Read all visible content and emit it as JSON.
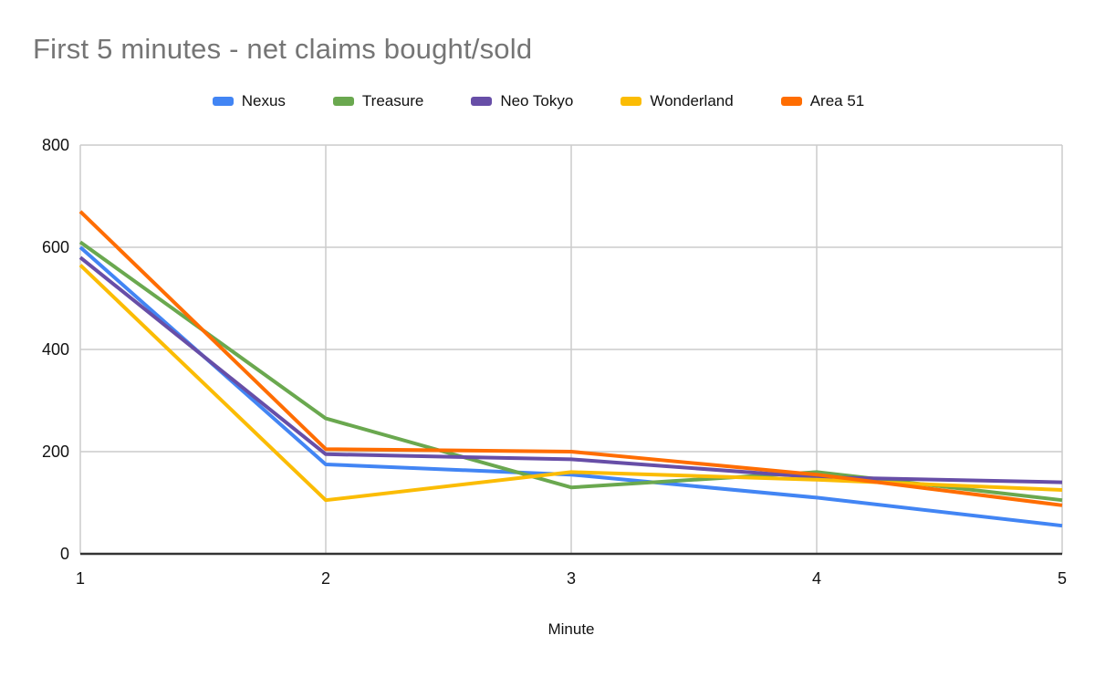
{
  "chart_data": {
    "type": "line",
    "title": "First 5 minutes - net claims bought/sold",
    "xlabel": "Minute",
    "ylabel": "",
    "x": [
      1,
      2,
      3,
      4,
      5
    ],
    "x_ticks": [
      1,
      2,
      3,
      4,
      5
    ],
    "y_ticks": [
      0,
      200,
      400,
      600,
      800
    ],
    "xlim": [
      1,
      5
    ],
    "ylim": [
      0,
      800
    ],
    "grid": true,
    "legend_position": "top",
    "series": [
      {
        "name": "Nexus",
        "color": "#4285F4",
        "values": [
          600,
          175,
          155,
          110,
          55
        ]
      },
      {
        "name": "Treasure",
        "color": "#6AA84F",
        "values": [
          610,
          265,
          130,
          160,
          105
        ]
      },
      {
        "name": "Neo Tokyo",
        "color": "#674EA7",
        "values": [
          580,
          195,
          185,
          150,
          140
        ]
      },
      {
        "name": "Wonderland",
        "color": "#FBBC04",
        "values": [
          565,
          105,
          160,
          145,
          125
        ]
      },
      {
        "name": "Area 51",
        "color": "#FF6D01",
        "values": [
          670,
          205,
          200,
          155,
          95
        ]
      }
    ],
    "style": {
      "title_color": "#757575",
      "gridline_color": "#cccccc",
      "axis_line_color": "#333333",
      "tick_label_color": "#111111",
      "background": "#ffffff"
    }
  }
}
